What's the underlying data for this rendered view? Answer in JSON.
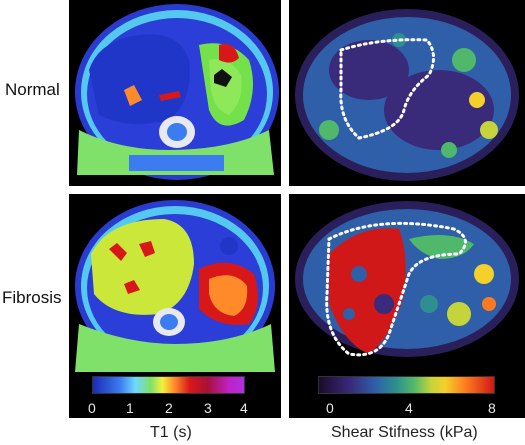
{
  "rows": {
    "normal": "Normal",
    "fibrosis": "Fibrosis"
  },
  "colorbars": {
    "t1": {
      "ticks": [
        "0",
        "1",
        "2",
        "3",
        "4"
      ],
      "title": "T1 (s)"
    },
    "shear": {
      "ticks": [
        "0",
        "4",
        "8"
      ],
      "title": "Shear Stifness (kPa)"
    }
  },
  "colors": {
    "t1_low": "#1a2bb8",
    "t1_high": "#b030e0",
    "stiff_low": "#1b0a2a",
    "stiff_high": "#d01818",
    "roi_outline": "#ffffff"
  }
}
